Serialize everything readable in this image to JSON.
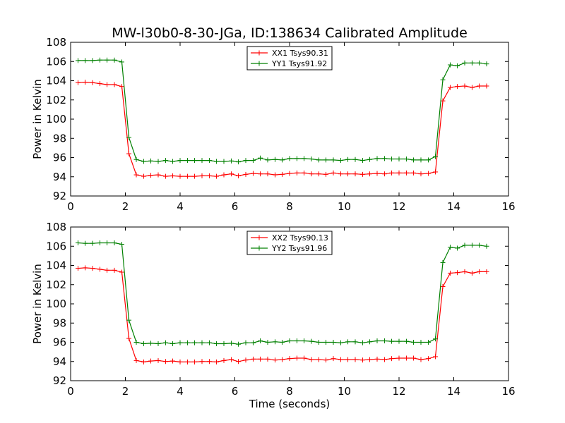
{
  "chart_data": [
    {
      "type": "line",
      "title": "MW-l30b0-8-30-JGa, ID:138634 Calibrated Amplitude",
      "xlabel": "",
      "ylabel": "Power in Kelvin",
      "xlim": [
        0,
        16
      ],
      "ylim": [
        92,
        108
      ],
      "xticks": [
        "0",
        "2",
        "4",
        "6",
        "8",
        "10",
        "12",
        "14",
        "16"
      ],
      "yticks": [
        "92",
        "94",
        "96",
        "98",
        "100",
        "102",
        "104",
        "106",
        "108"
      ],
      "grid": false,
      "legend_position": "top-center",
      "x": [
        0.27,
        0.53,
        0.8,
        1.07,
        1.33,
        1.6,
        1.87,
        2.13,
        2.4,
        2.67,
        2.93,
        3.2,
        3.47,
        3.73,
        4.0,
        4.27,
        4.53,
        4.8,
        5.07,
        5.33,
        5.6,
        5.87,
        6.13,
        6.4,
        6.67,
        6.93,
        7.2,
        7.47,
        7.73,
        8.0,
        8.27,
        8.53,
        8.8,
        9.07,
        9.33,
        9.6,
        9.87,
        10.13,
        10.4,
        10.67,
        10.93,
        11.2,
        11.47,
        11.73,
        12.0,
        12.27,
        12.53,
        12.8,
        13.07,
        13.33,
        13.6,
        13.87,
        14.13,
        14.4,
        14.67,
        14.93,
        15.2
      ],
      "series": [
        {
          "name": "XX1 Tsys90.31",
          "color": "#ff0000",
          "values": [
            103.8,
            103.85,
            103.8,
            103.7,
            103.6,
            103.6,
            103.4,
            96.4,
            94.2,
            94.05,
            94.15,
            94.2,
            94.05,
            94.1,
            94.05,
            94.05,
            94.05,
            94.1,
            94.1,
            94.05,
            94.2,
            94.3,
            94.1,
            94.25,
            94.35,
            94.3,
            94.3,
            94.2,
            94.25,
            94.35,
            94.4,
            94.4,
            94.3,
            94.3,
            94.25,
            94.4,
            94.3,
            94.3,
            94.3,
            94.25,
            94.3,
            94.35,
            94.3,
            94.4,
            94.4,
            94.4,
            94.4,
            94.3,
            94.35,
            94.5,
            101.9,
            103.3,
            103.4,
            103.45,
            103.3,
            103.45,
            103.45
          ]
        },
        {
          "name": "YY1 Tsys91.92",
          "color": "#008000",
          "values": [
            106.1,
            106.1,
            106.1,
            106.15,
            106.15,
            106.15,
            105.95,
            98.1,
            95.8,
            95.6,
            95.65,
            95.6,
            95.7,
            95.6,
            95.7,
            95.7,
            95.7,
            95.7,
            95.7,
            95.6,
            95.6,
            95.65,
            95.55,
            95.7,
            95.7,
            95.95,
            95.75,
            95.8,
            95.75,
            95.9,
            95.9,
            95.9,
            95.85,
            95.75,
            95.75,
            95.75,
            95.7,
            95.8,
            95.8,
            95.7,
            95.8,
            95.9,
            95.9,
            95.85,
            95.85,
            95.85,
            95.75,
            95.75,
            95.75,
            96.1,
            104.1,
            105.65,
            105.55,
            105.85,
            105.85,
            105.85,
            105.75
          ]
        }
      ]
    },
    {
      "type": "line",
      "title": "",
      "xlabel": "Time (seconds)",
      "ylabel": "Power in Kelvin",
      "xlim": [
        0,
        16
      ],
      "ylim": [
        92,
        108
      ],
      "xticks": [
        "0",
        "2",
        "4",
        "6",
        "8",
        "10",
        "12",
        "14",
        "16"
      ],
      "yticks": [
        "92",
        "94",
        "96",
        "98",
        "100",
        "102",
        "104",
        "106",
        "108"
      ],
      "grid": false,
      "legend_position": "top-center",
      "x": [
        0.27,
        0.53,
        0.8,
        1.07,
        1.33,
        1.6,
        1.87,
        2.13,
        2.4,
        2.67,
        2.93,
        3.2,
        3.47,
        3.73,
        4.0,
        4.27,
        4.53,
        4.8,
        5.07,
        5.33,
        5.6,
        5.87,
        6.13,
        6.4,
        6.67,
        6.93,
        7.2,
        7.47,
        7.73,
        8.0,
        8.27,
        8.53,
        8.8,
        9.07,
        9.33,
        9.6,
        9.87,
        10.13,
        10.4,
        10.67,
        10.93,
        11.2,
        11.47,
        11.73,
        12.0,
        12.27,
        12.53,
        12.8,
        13.07,
        13.33,
        13.6,
        13.87,
        14.13,
        14.4,
        14.67,
        14.93,
        15.2
      ],
      "series": [
        {
          "name": "XX2 Tsys90.13",
          "color": "#ff0000",
          "values": [
            103.7,
            103.75,
            103.7,
            103.6,
            103.5,
            103.5,
            103.3,
            96.4,
            94.1,
            93.95,
            94.05,
            94.1,
            94.0,
            94.05,
            93.95,
            93.95,
            93.95,
            94.0,
            94.0,
            93.95,
            94.1,
            94.2,
            94.0,
            94.15,
            94.25,
            94.25,
            94.25,
            94.15,
            94.2,
            94.3,
            94.35,
            94.35,
            94.2,
            94.2,
            94.15,
            94.3,
            94.2,
            94.2,
            94.2,
            94.15,
            94.2,
            94.25,
            94.2,
            94.3,
            94.35,
            94.35,
            94.35,
            94.2,
            94.3,
            94.5,
            101.8,
            103.2,
            103.25,
            103.35,
            103.2,
            103.35,
            103.35
          ]
        },
        {
          "name": "YY2 Tsys91.96",
          "color": "#008000",
          "values": [
            106.35,
            106.3,
            106.3,
            106.35,
            106.35,
            106.35,
            106.2,
            98.3,
            96.0,
            95.85,
            95.9,
            95.85,
            95.95,
            95.85,
            95.95,
            95.95,
            95.95,
            95.95,
            95.95,
            95.85,
            95.85,
            95.9,
            95.8,
            95.95,
            95.95,
            96.15,
            96.0,
            96.05,
            96.0,
            96.15,
            96.15,
            96.15,
            96.1,
            96.0,
            96.0,
            96.0,
            95.95,
            96.05,
            96.05,
            95.95,
            96.05,
            96.15,
            96.15,
            96.1,
            96.1,
            96.1,
            96.0,
            96.0,
            96.0,
            96.35,
            104.3,
            105.9,
            105.8,
            106.1,
            106.1,
            106.1,
            106.0
          ]
        }
      ]
    }
  ]
}
